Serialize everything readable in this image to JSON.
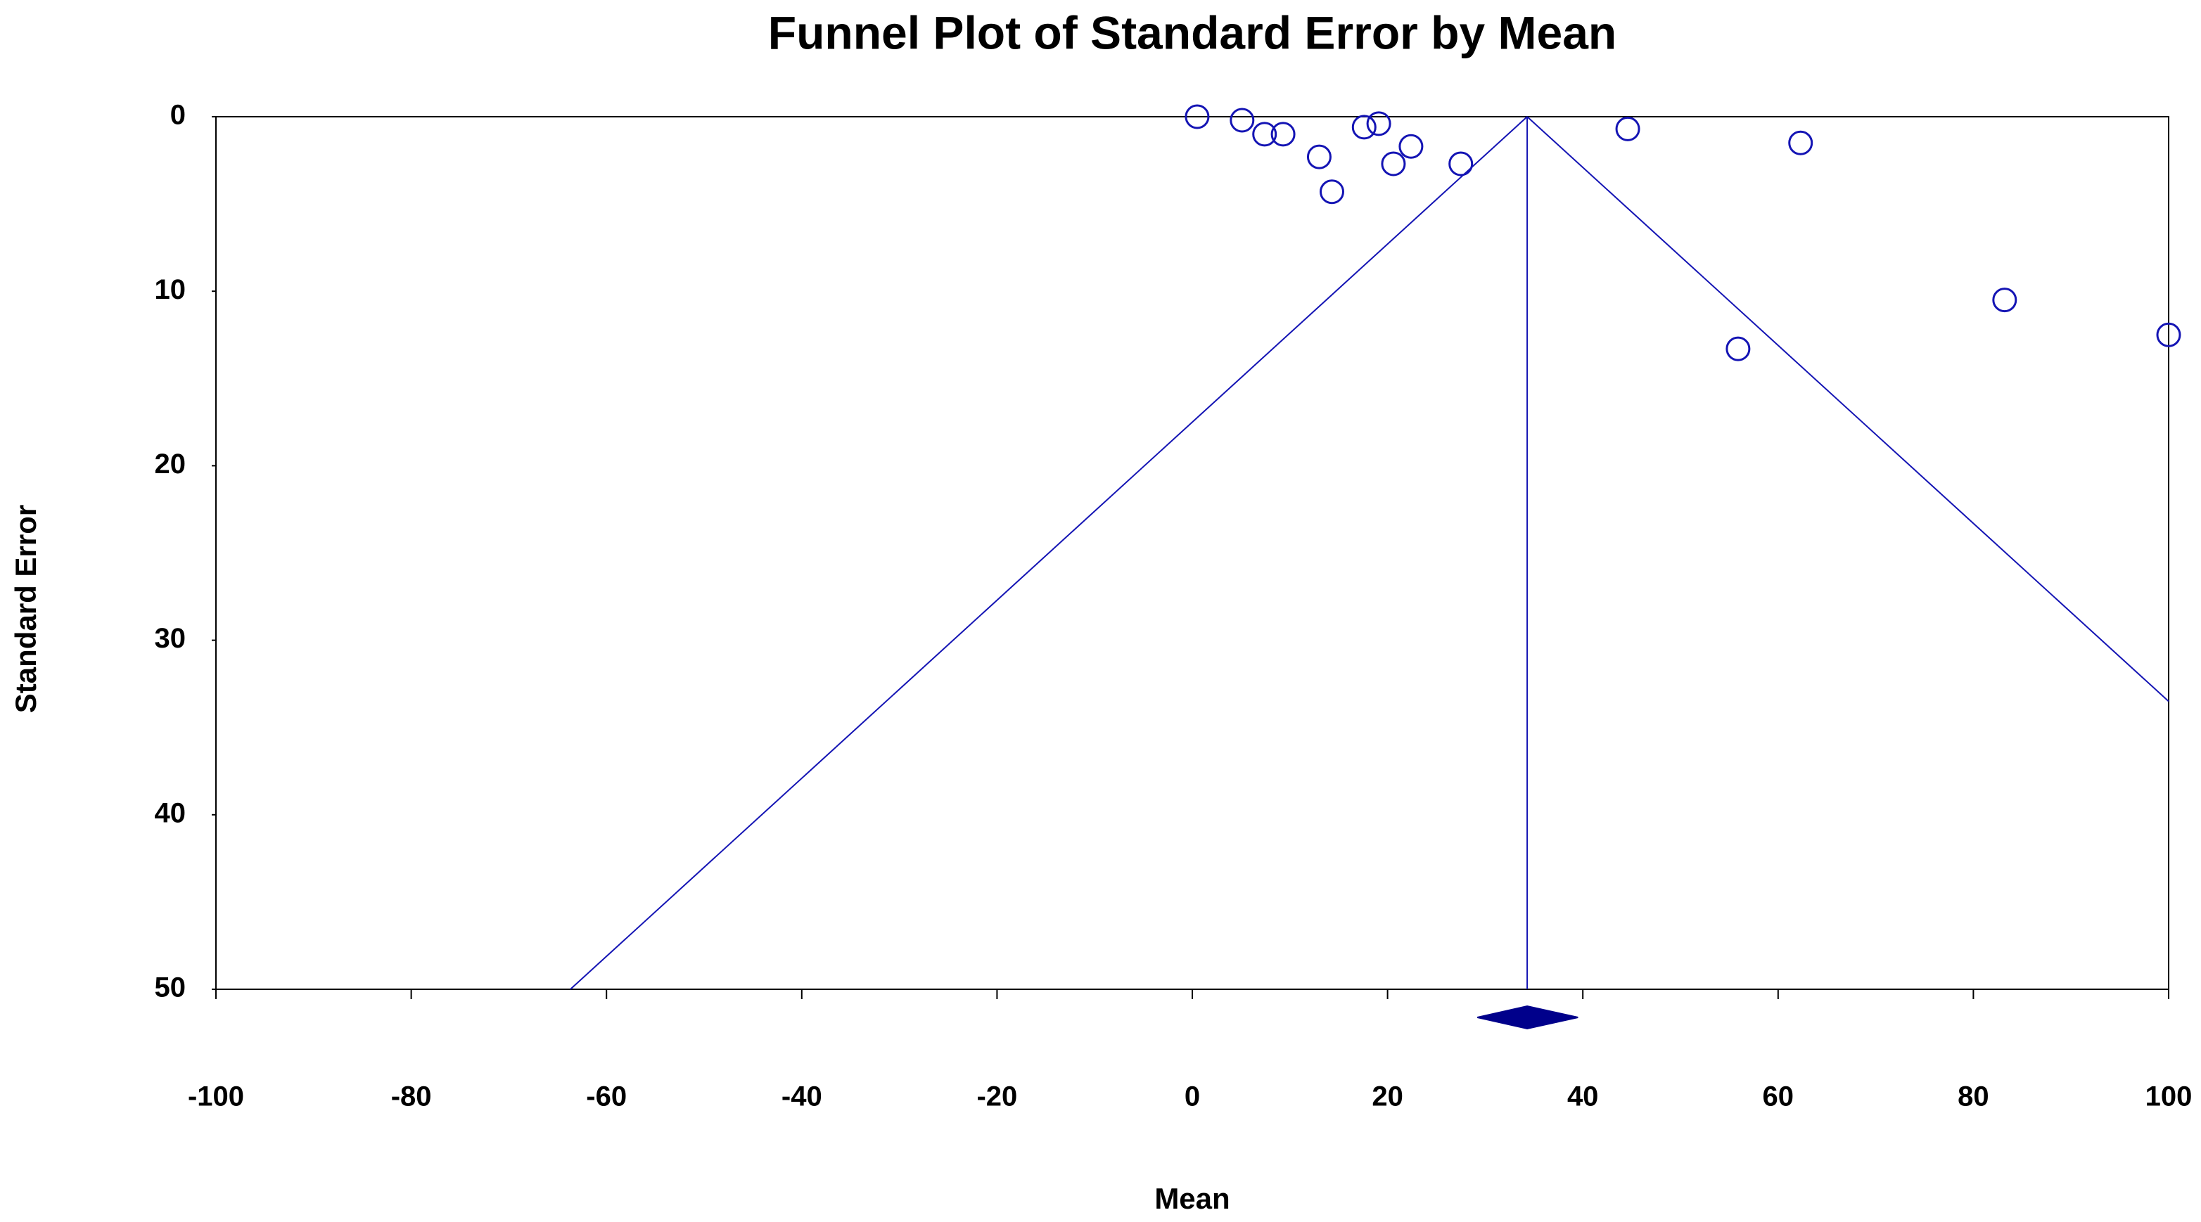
{
  "chart_data": {
    "type": "funnel",
    "title": "Funnel Plot of Standard Error by Mean",
    "x_label": "Mean",
    "y_label": "Standard Error",
    "color": "#1414b4",
    "x": [
      0.5,
      5.1,
      7.4,
      9.3,
      13.0,
      14.3,
      17.6,
      19.1,
      20.6,
      22.4,
      27.5,
      44.6,
      62.3,
      55.9,
      83.2,
      100
    ],
    "values": [
      0,
      0.2,
      1.0,
      1.0,
      2.3,
      4.3,
      0.6,
      0.4,
      2.7,
      1.7,
      2.7,
      0.7,
      1.5,
      13.3,
      10.5,
      12.5
    ],
    "lines": [
      {
        "x": [
          34.3,
          -63.7
        ],
        "values": [
          0,
          50
        ]
      },
      {
        "x": [
          34.3,
          100
        ],
        "values": [
          0,
          33.5
        ]
      },
      {
        "x": [
          34.3,
          34.3
        ],
        "values": [
          0,
          50
        ]
      }
    ],
    "summary": {
      "value": 34.3,
      "ci": [
        29.2,
        39.5
      ],
      "color": "#00008b"
    },
    "xlim": [
      -100,
      100
    ],
    "xticks": [
      -100,
      -80,
      -60,
      -40,
      -20,
      0,
      20,
      40,
      60,
      80,
      100
    ],
    "ylim": [
      0,
      50
    ],
    "yticks": [
      0,
      10,
      20,
      30,
      40,
      50
    ],
    "y_inverted": true
  }
}
